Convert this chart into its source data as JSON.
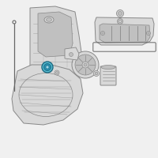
{
  "bg_color": "#f0f0f0",
  "part_fill": "#d8d8d8",
  "part_edge": "#888888",
  "part_dark": "#666666",
  "inner_fill": "#c0c0c0",
  "hl_outer": "#5bbfd4",
  "hl_inner": "#2a90b0",
  "hl_dark": "#1a6880",
  "white": "#ffffff",
  "gasket_color": "#aaaaaa",
  "fig_size": [
    2.0,
    2.0
  ],
  "dpi": 100
}
